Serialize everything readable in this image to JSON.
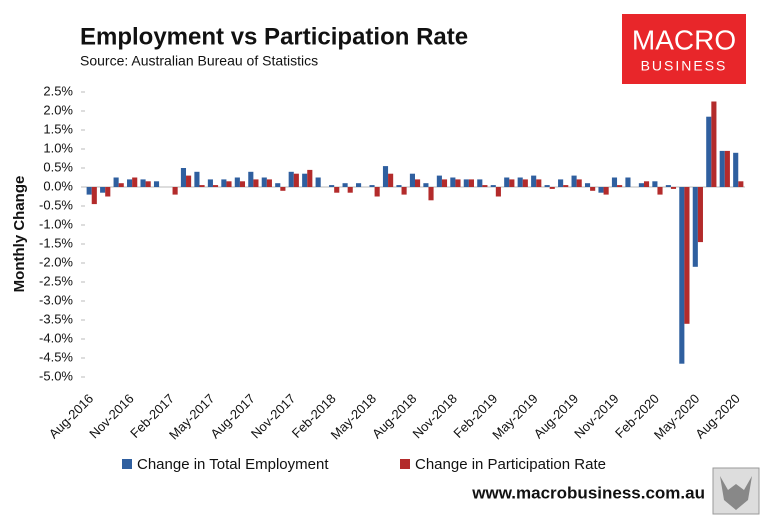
{
  "chart_data": {
    "type": "bar",
    "title": "Employment vs Participation Rate",
    "subtitle": "Source: Australian Bureau of Statistics",
    "y_label": "Monthly Change",
    "categories": [
      "Aug-2016",
      null,
      null,
      "Nov-2016",
      null,
      null,
      "Feb-2017",
      null,
      null,
      "May-2017",
      null,
      null,
      "Aug-2017",
      null,
      null,
      "Nov-2017",
      null,
      null,
      "Feb-2018",
      null,
      null,
      "May-2018",
      null,
      null,
      "Aug-2018",
      null,
      null,
      "Nov-2018",
      null,
      null,
      "Feb-2019",
      null,
      null,
      "May-2019",
      null,
      null,
      "Aug-2019",
      null,
      null,
      "Nov-2019",
      null,
      null,
      "Feb-2020",
      null,
      null,
      "May-2020",
      null,
      null,
      "Aug-2020"
    ],
    "series": [
      {
        "name": "Change in Total Employment",
        "color": "#2f5f9f",
        "values": [
          -0.2,
          -0.15,
          0.25,
          0.2,
          0.2,
          0.15,
          0,
          0.5,
          0.4,
          0.2,
          0.2,
          0.25,
          0.4,
          0.25,
          0.1,
          0.4,
          0.35,
          0.25,
          0.05,
          0.1,
          0.1,
          0.05,
          0.55,
          0.05,
          0.35,
          0.1,
          0.3,
          0.25,
          0.2,
          0.2,
          0.05,
          0.25,
          0.25,
          0.3,
          0.05,
          0.2,
          0.3,
          0.1,
          -0.15,
          0.25,
          0.25,
          0.1,
          0.15,
          0.05,
          -4.65,
          -2.1,
          1.85,
          0.95,
          0.9
        ]
      },
      {
        "name": "Change in Participation Rate",
        "color": "#b32b2b",
        "values": [
          -0.45,
          -0.25,
          0.1,
          0.25,
          0.15,
          0,
          -0.2,
          0.3,
          0.05,
          0.05,
          0.15,
          0.15,
          0.2,
          0.2,
          -0.1,
          0.35,
          0.45,
          0,
          -0.15,
          -0.15,
          0,
          -0.25,
          0.35,
          -0.2,
          0.2,
          -0.35,
          0.2,
          0.2,
          0.2,
          0.05,
          -0.25,
          0.2,
          0.2,
          0.2,
          -0.05,
          0.05,
          0.2,
          -0.1,
          -0.2,
          0.05,
          0,
          0.15,
          -0.2,
          -0.05,
          -3.6,
          -1.45,
          2.25,
          0.95,
          0.15
        ]
      }
    ],
    "ylim": [
      -5.0,
      2.5
    ],
    "yticks": [
      {
        "value": 2.5,
        "label": "2.5%"
      },
      {
        "value": 2.0,
        "label": "2.0%"
      },
      {
        "value": 1.5,
        "label": "1.5%"
      },
      {
        "value": 1.0,
        "label": "1.0%"
      },
      {
        "value": 0.5,
        "label": "0.5%"
      },
      {
        "value": 0,
        "label": "0.0%"
      },
      {
        "value": -0.5,
        "label": "-0.5%"
      },
      {
        "value": -1.0,
        "label": "-1.0%"
      },
      {
        "value": -1.5,
        "label": "-1.5%"
      },
      {
        "value": -2.0,
        "label": "-2.0%"
      },
      {
        "value": -2.5,
        "label": "-2.5%"
      },
      {
        "value": -3.0,
        "label": "-3.0%"
      },
      {
        "value": -3.5,
        "label": "-3.5%"
      },
      {
        "value": -4.0,
        "label": "-4.0%"
      },
      {
        "value": -4.5,
        "label": "-4.5%"
      },
      {
        "value": -5.0,
        "label": "-5.0%"
      }
    ],
    "grid": false,
    "legend": "bottom"
  },
  "branding": {
    "logo_top": "MACRO",
    "logo_bottom": "BUSINESS",
    "website": "www.macrobusiness.com.au"
  }
}
